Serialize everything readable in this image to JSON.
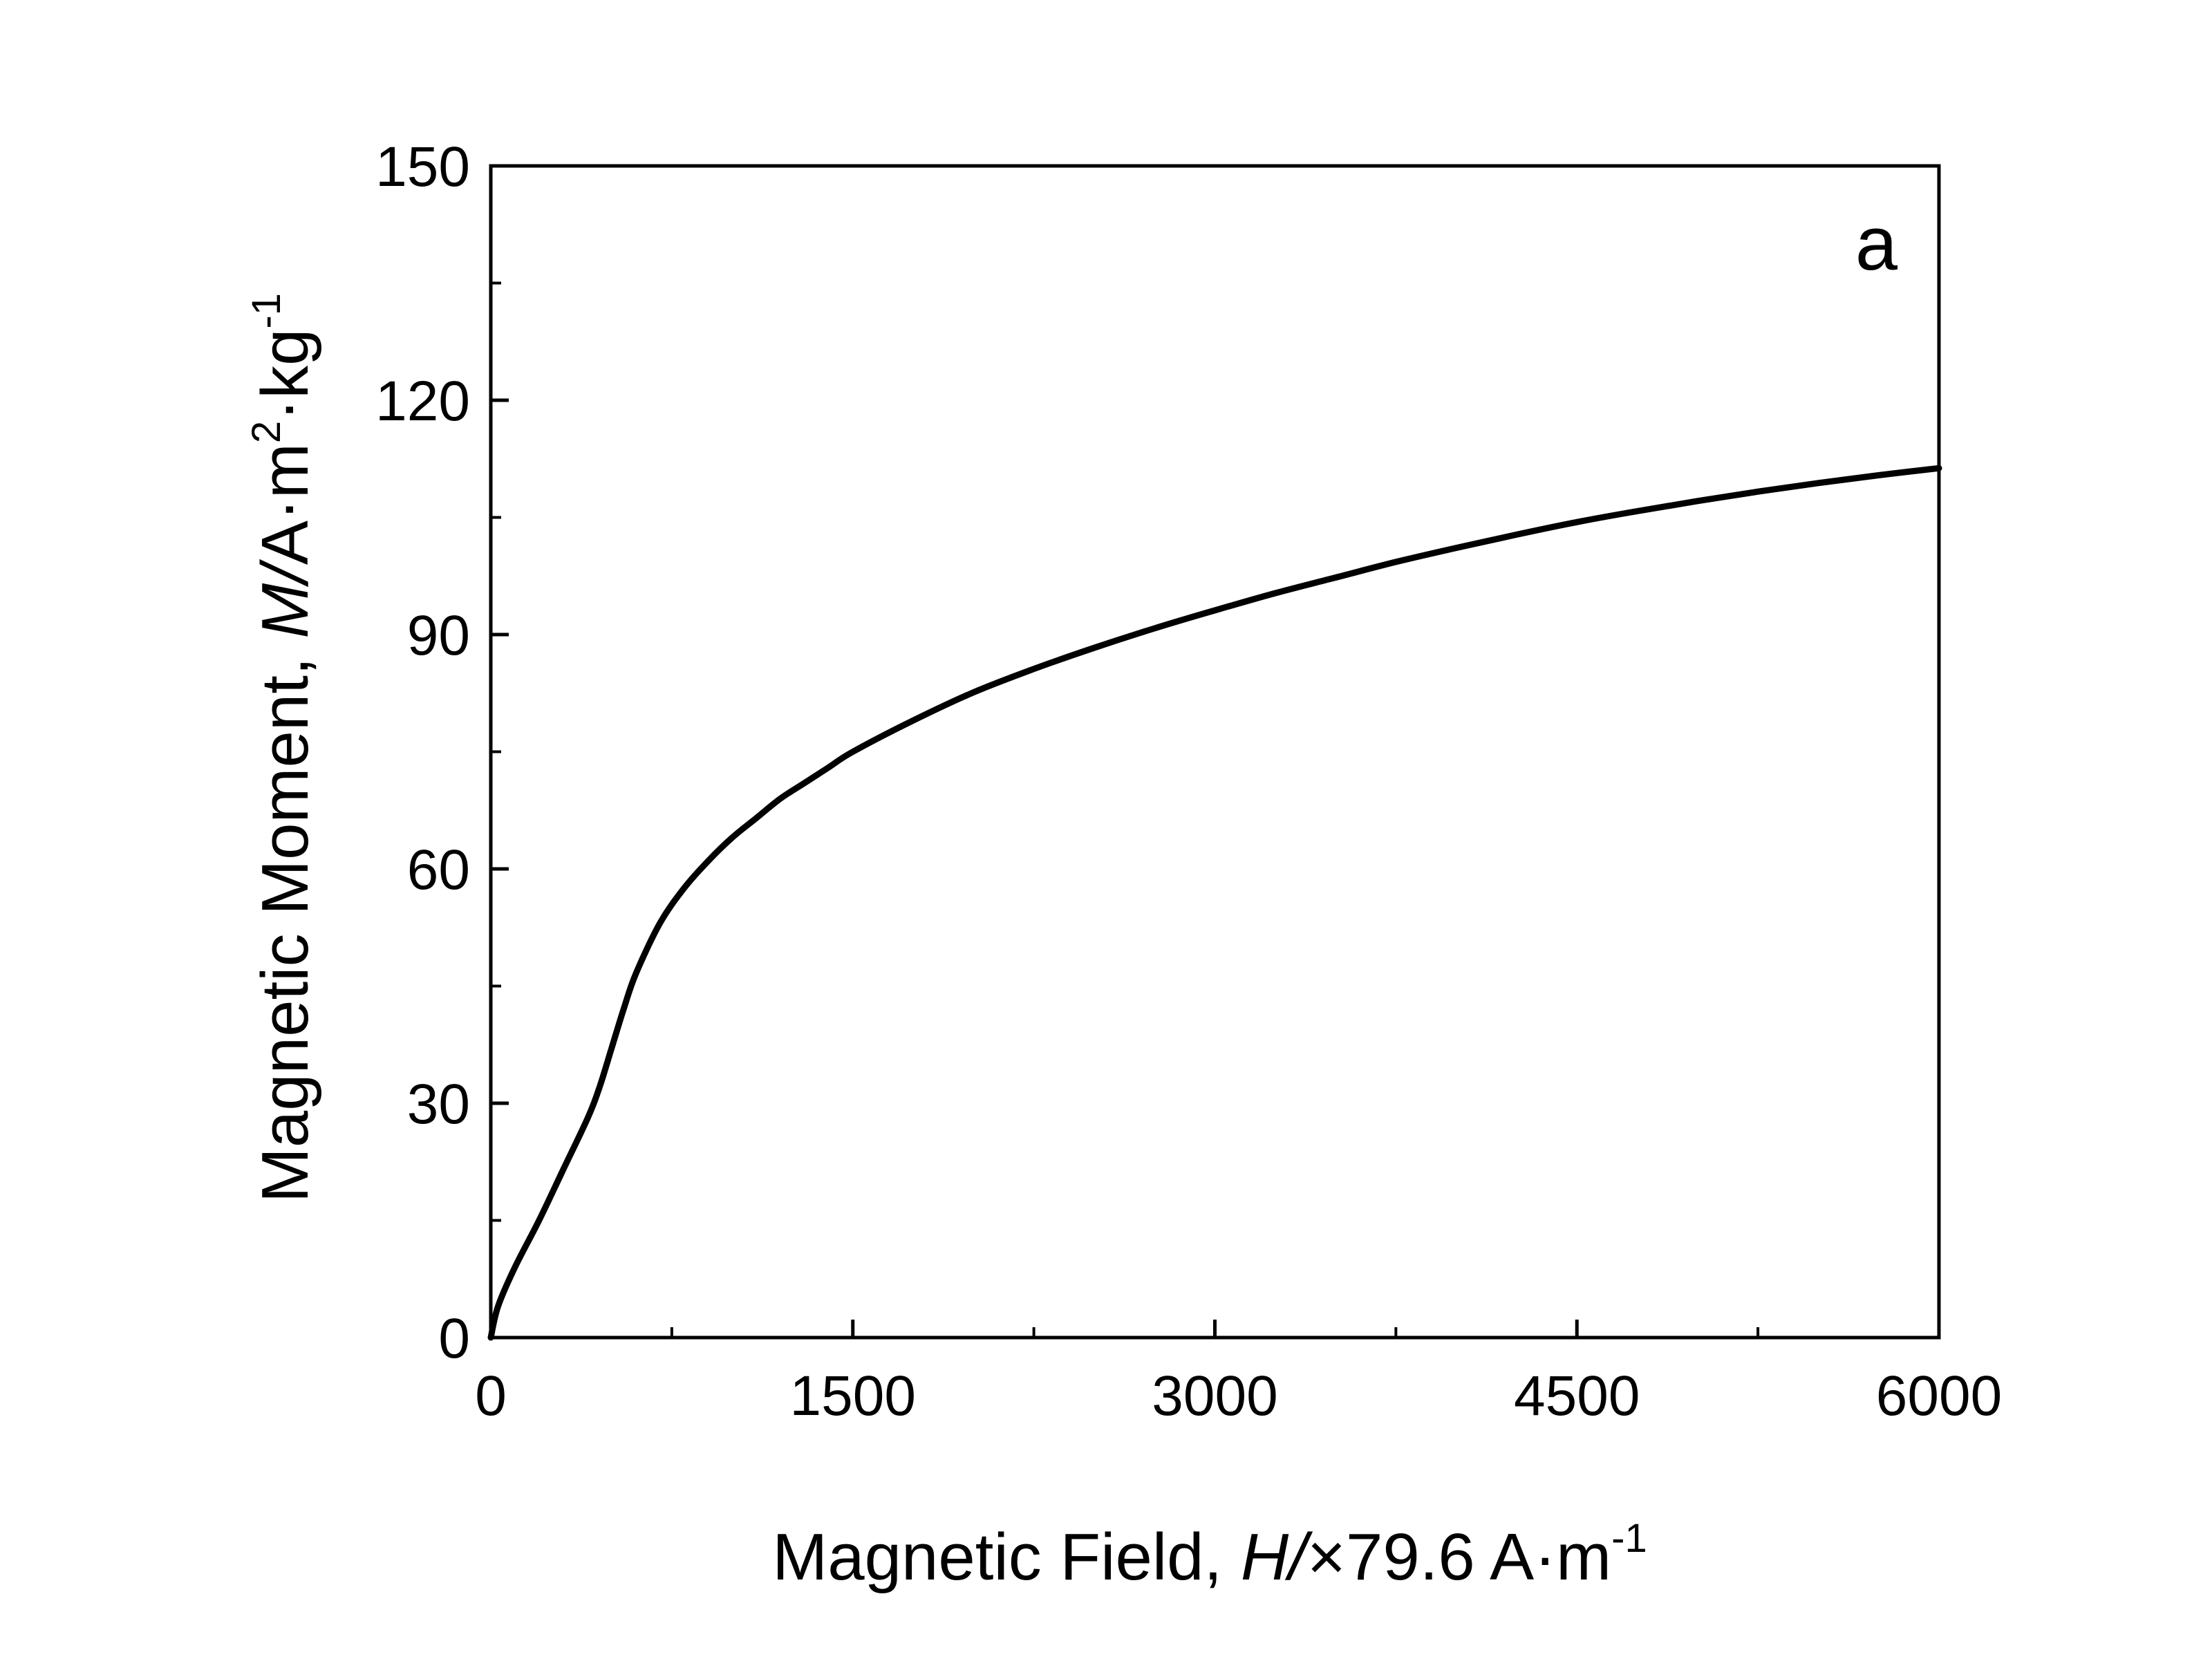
{
  "chart_data": {
    "type": "line",
    "panel_label": "a",
    "xlabel": {
      "prefix": "Magnetic Field, ",
      "symbol": "H",
      "slash": "/",
      "unit": "×79.6 A·m",
      "unit_sup": "-1"
    },
    "ylabel": {
      "prefix": "Magnetic Moment, ",
      "symbol": "M",
      "slash": "/",
      "unit": "A·m",
      "unit_sup1": "2",
      "unit_mid": "·kg",
      "unit_sup2": "-1"
    },
    "xlim": [
      0,
      6000
    ],
    "ylim": [
      0,
      150
    ],
    "x_ticks": [
      0,
      1500,
      3000,
      4500,
      6000
    ],
    "x_tick_labels": [
      "0",
      "1500",
      "3000",
      "4500",
      "6000"
    ],
    "y_ticks": [
      0,
      30,
      60,
      90,
      120,
      150
    ],
    "y_tick_labels": [
      "0",
      "30",
      "60",
      "90",
      "120",
      "150"
    ],
    "x_minor_step": 750,
    "y_minor_step": 15,
    "grid": false,
    "legend": "none",
    "line_color": "#000000",
    "series": [
      {
        "x": [
          0,
          30,
          100,
          200,
          300,
          400,
          450,
          500,
          550,
          600,
          700,
          800,
          900,
          1000,
          1100,
          1200,
          1300,
          1400,
          1500,
          1750,
          2000,
          2250,
          2500,
          2750,
          3000,
          3250,
          3500,
          3750,
          4000,
          4250,
          4500,
          4750,
          5000,
          5250,
          5500,
          5750,
          6000
        ],
        "y": [
          0,
          4,
          9,
          15,
          21.5,
          28,
          32,
          37,
          42,
          46.5,
          53,
          57.5,
          61,
          64,
          66.5,
          69,
          71,
          73,
          75,
          79,
          82.6,
          85.6,
          88.3,
          90.8,
          93.1,
          95.3,
          97.3,
          99.3,
          101.1,
          102.8,
          104.4,
          105.8,
          107.1,
          108.3,
          109.4,
          110.4,
          111.3
        ]
      }
    ]
  }
}
